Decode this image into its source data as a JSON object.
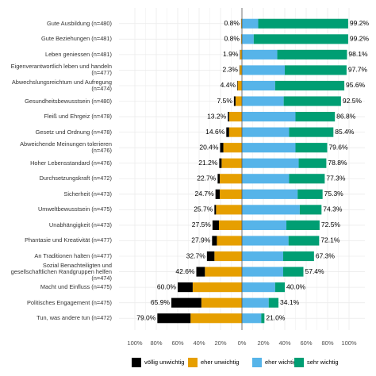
{
  "chart_data": {
    "type": "diverging-bar",
    "categories": [
      "Gute Ausbildung (n=480)",
      "Gute Beziehungen (n=481)",
      "Leben geniessen (n=481)",
      "Eigenverantwortlich leben und handeln (n=477)",
      "Abwechslungsreichtum und Aufregung (n=474)",
      "Gesundheitsbewusstsein (n=480)",
      "Fleiß und Ehrgeiz (n=478)",
      "Gesetz und Ordnung (n=478)",
      "Abweichende Meinungen tolerieren (n=476)",
      "Hoher Lebensstandard (n=476)",
      "Durchsetzungskraft (n=472)",
      "Sicherheit (n=473)",
      "Umweltbewusstsein (n=475)",
      "Unabhängigkeit (n=473)",
      "Phantasie und Kreativität (n=477)",
      "An Traditionen halten (n=477)",
      "Sozial Benachteiligten und gesellschaftlichen Randgruppen helfen (n=474)",
      "Macht und Einfluss (n=475)",
      "Politisches Engagement (n=475)",
      "Tun, was andere tun (n=472)"
    ],
    "series": [
      {
        "name": "völlig unwichtig",
        "color": "#000000",
        "side": "left",
        "values": [
          0.1,
          0.1,
          0.3,
          0.3,
          0.4,
          1.5,
          1.2,
          2.6,
          3.0,
          2.2,
          2.0,
          4.0,
          1.5,
          6.0,
          4.5,
          7.0,
          8.0,
          14.0,
          28.0,
          31.0
        ]
      },
      {
        "name": "eher unwichtig",
        "color": "#E69F00",
        "side": "left",
        "values": [
          0.7,
          0.7,
          1.6,
          2.0,
          4.0,
          6.0,
          12.0,
          12.0,
          17.4,
          19.0,
          20.7,
          20.7,
          24.2,
          21.5,
          23.4,
          25.7,
          34.6,
          46.0,
          37.9,
          48.0
        ]
      },
      {
        "name": "eher wichtig",
        "color": "#56B4E9",
        "side": "right",
        "values": [
          15.2,
          11.0,
          33.0,
          40.0,
          31.0,
          39.0,
          50.0,
          44.0,
          50.0,
          53.0,
          44.0,
          52.0,
          54.0,
          41.5,
          43.5,
          38.5,
          38.5,
          31.0,
          25.0,
          18.0
        ]
      },
      {
        "name": "sehr wichtig",
        "color": "#009E73",
        "side": "right",
        "values": [
          84.0,
          88.2,
          65.1,
          57.7,
          64.6,
          53.5,
          36.8,
          41.4,
          29.6,
          25.8,
          33.3,
          23.3,
          20.3,
          31.0,
          28.6,
          28.8,
          18.9,
          9.0,
          9.1,
          3.0
        ]
      }
    ],
    "left_totals": {
      "values": [
        0.8,
        0.8,
        1.9,
        2.3,
        4.4,
        7.5,
        13.2,
        14.6,
        20.4,
        21.2,
        22.7,
        24.7,
        25.7,
        27.5,
        27.9,
        32.7,
        42.6,
        60.0,
        65.9,
        79.0
      ],
      "value_labels": [
        "0.8%",
        "0.8%",
        "1.9%",
        "2.3%",
        "4.4%",
        "7.5%",
        "13.2%",
        "14.6%",
        "20.4%",
        "21.2%",
        "22.7%",
        "24.7%",
        "25.7%",
        "27.5%",
        "27.9%",
        "32.7%",
        "42.6%",
        "60.0%",
        "65.9%",
        "79.0%"
      ]
    },
    "right_totals": {
      "values": [
        99.2,
        99.2,
        98.1,
        97.7,
        95.6,
        92.5,
        86.8,
        85.4,
        79.6,
        78.8,
        77.3,
        75.3,
        74.3,
        72.5,
        72.1,
        67.3,
        57.4,
        40.0,
        34.1,
        21.0
      ],
      "value_labels": [
        "99.2%",
        "99.2%",
        "98.1%",
        "97.7%",
        "95.6%",
        "92.5%",
        "86.8%",
        "85.4%",
        "79.6%",
        "78.8%",
        "77.3%",
        "75.3%",
        "74.3%",
        "72.5%",
        "72.1%",
        "67.3%",
        "57.4%",
        "40.0%",
        "34.1%",
        "21.0%"
      ]
    },
    "xlim": [
      -100,
      100
    ],
    "xticks": [
      {
        "value": -100,
        "label": "100%"
      },
      {
        "value": -80,
        "label": "80%"
      },
      {
        "value": -60,
        "label": "60%"
      },
      {
        "value": -40,
        "label": "40%"
      },
      {
        "value": -20,
        "label": "20%"
      },
      {
        "value": 0,
        "label": "0%"
      },
      {
        "value": 20,
        "label": "20%"
      },
      {
        "value": 40,
        "label": "40%"
      },
      {
        "value": 60,
        "label": "60%"
      },
      {
        "value": 80,
        "label": "80%"
      },
      {
        "value": 100,
        "label": "100%"
      }
    ],
    "grid": true
  }
}
